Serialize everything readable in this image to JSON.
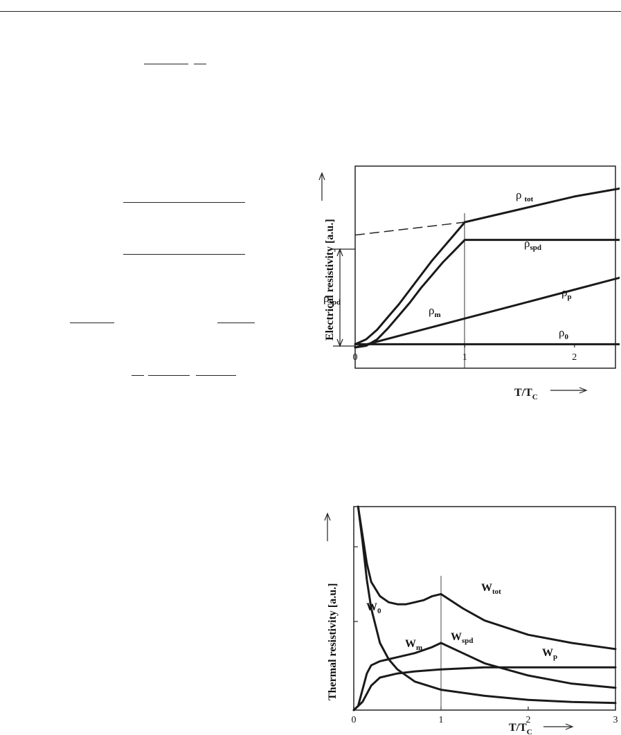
{
  "chart_data": [
    {
      "type": "line",
      "ylabel": "Electrical resistivity [a.u.]",
      "xlabel": "T/T",
      "xlabel_sub": "C",
      "xlim": [
        0,
        2.5
      ],
      "ylim": [
        0,
        1.0
      ],
      "xticks": [
        "0",
        "1",
        "2"
      ],
      "grid": false,
      "annotations": {
        "rho_spd_span": "ρ",
        "rho_spd_span_sub": "spd"
      },
      "series": [
        {
          "name": "ρ",
          "sub": "tot",
          "x": [
            0,
            0.1,
            0.2,
            0.3,
            0.4,
            0.5,
            0.6,
            0.7,
            0.8,
            0.9,
            1.0,
            1.5,
            2.0,
            2.5
          ],
          "y": [
            0.02,
            0.05,
            0.11,
            0.19,
            0.27,
            0.36,
            0.45,
            0.54,
            0.62,
            0.7,
            0.78,
            0.86,
            0.94,
            1.02
          ]
        },
        {
          "name": "ρ",
          "sub": "spd",
          "x": [
            0,
            0.1,
            0.2,
            0.3,
            0.4,
            0.5,
            0.6,
            0.7,
            0.8,
            0.9,
            1.0,
            1.5,
            2.0,
            2.5
          ],
          "y": [
            0.0,
            0.01,
            0.05,
            0.12,
            0.2,
            0.28,
            0.37,
            0.45,
            0.53,
            0.6,
            0.67,
            0.67,
            0.67,
            0.67
          ]
        },
        {
          "name": "ρ",
          "sub": "p",
          "x": [
            0,
            0.5,
            1.0,
            1.5,
            2.0,
            2.5
          ],
          "y": [
            0.0,
            0.09,
            0.18,
            0.27,
            0.36,
            0.45
          ]
        },
        {
          "name": "ρ",
          "sub": "0",
          "x": [
            0,
            2.5
          ],
          "y": [
            0.02,
            0.02
          ]
        }
      ],
      "extrapolation": {
        "style": "dashed",
        "x": [
          0,
          1.0
        ],
        "y": [
          0.7,
          0.78
        ]
      },
      "curve_labels": [
        {
          "text": "ρ",
          "sub": "m"
        }
      ]
    },
    {
      "type": "line",
      "ylabel": "Thermal resistivity [a.u.]",
      "xlabel": "T/T",
      "xlabel_sub": "C",
      "xlim": [
        0,
        3
      ],
      "ylim": [
        0,
        1.0
      ],
      "xticks": [
        "0",
        "1",
        "2",
        "3"
      ],
      "grid": false,
      "series": [
        {
          "name": "W",
          "sub": "tot",
          "x": [
            0.05,
            0.1,
            0.15,
            0.2,
            0.3,
            0.4,
            0.5,
            0.6,
            0.7,
            0.8,
            0.9,
            1.0,
            1.25,
            1.5,
            2.0,
            2.5,
            3.0
          ],
          "y": [
            1.05,
            0.86,
            0.72,
            0.63,
            0.56,
            0.53,
            0.52,
            0.52,
            0.53,
            0.54,
            0.56,
            0.57,
            0.5,
            0.44,
            0.37,
            0.33,
            0.3
          ]
        },
        {
          "name": "W",
          "sub": "0",
          "x": [
            0.05,
            0.1,
            0.15,
            0.2,
            0.3,
            0.4,
            0.5,
            0.7,
            1.0,
            1.5,
            2.0,
            2.5,
            3.0
          ],
          "y": [
            1.05,
            0.83,
            0.64,
            0.5,
            0.33,
            0.25,
            0.2,
            0.14,
            0.1,
            0.07,
            0.05,
            0.04,
            0.035
          ]
        },
        {
          "name": "W",
          "sub": "m",
          "x": [
            0.0,
            0.05,
            0.1,
            0.15,
            0.2,
            0.3,
            0.4,
            0.5,
            0.7,
            0.9,
            1.0
          ],
          "y": [
            0.0,
            0.02,
            0.1,
            0.18,
            0.22,
            0.24,
            0.25,
            0.26,
            0.28,
            0.31,
            0.33
          ]
        },
        {
          "name": "W",
          "sub": "spd",
          "x": [
            1.0,
            1.25,
            1.5,
            2.0,
            2.5,
            3.0
          ],
          "y": [
            0.33,
            0.28,
            0.23,
            0.17,
            0.13,
            0.11
          ]
        },
        {
          "name": "W",
          "sub": "p",
          "x": [
            0.0,
            0.1,
            0.2,
            0.3,
            0.5,
            0.7,
            1.0,
            1.5,
            2.0,
            2.5,
            3.0
          ],
          "y": [
            0.0,
            0.04,
            0.12,
            0.16,
            0.18,
            0.19,
            0.2,
            0.21,
            0.21,
            0.21,
            0.21
          ]
        }
      ]
    }
  ]
}
